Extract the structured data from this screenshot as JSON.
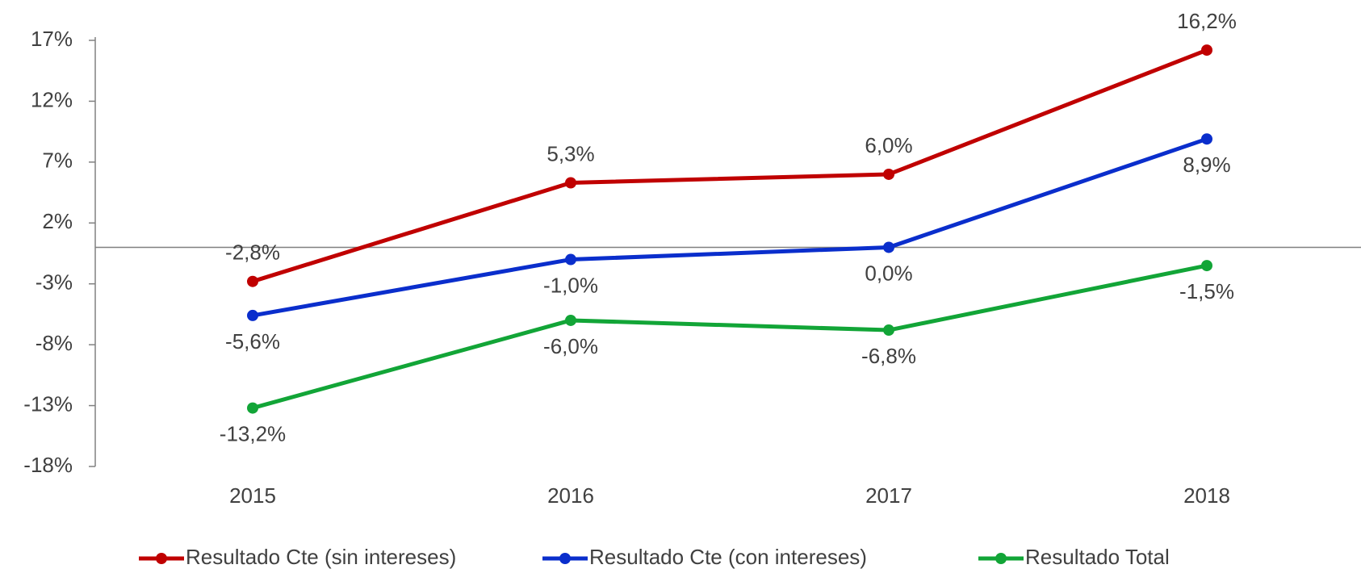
{
  "chart_data": {
    "type": "line",
    "categories": [
      "2015",
      "2016",
      "2017",
      "2018"
    ],
    "series": [
      {
        "name": "Resultado Cte (sin intereses)",
        "color": "#c00000",
        "values": [
          -2.8,
          5.3,
          6.0,
          16.2
        ],
        "value_labels": [
          "-2,8%",
          "5,3%",
          "6,0%",
          "16,2%"
        ]
      },
      {
        "name": "Resultado Cte (con intereses)",
        "color": "#0a2ecc",
        "values": [
          -5.6,
          -1.0,
          0.0,
          8.9
        ],
        "value_labels": [
          "-5,6%",
          "-1,0%",
          "0,0%",
          "8,9%"
        ]
      },
      {
        "name": "Resultado Total",
        "color": "#12a537",
        "values": [
          -13.2,
          -6.0,
          -6.8,
          -1.5
        ],
        "value_labels": [
          "-13,2%",
          "-6,0%",
          "-6,8%",
          "-1,5%"
        ]
      }
    ],
    "ylim": [
      -18,
      17
    ],
    "yticks": [
      {
        "value": 17,
        "label": "17%"
      },
      {
        "value": 12,
        "label": "12%"
      },
      {
        "value": 7,
        "label": "7%"
      },
      {
        "value": 2,
        "label": "2%"
      },
      {
        "value": -3,
        "label": "-3%"
      },
      {
        "value": -8,
        "label": "-8%"
      },
      {
        "value": -13,
        "label": "-13%"
      },
      {
        "value": -18,
        "label": "-18%"
      }
    ],
    "grid": false,
    "legend": "bottom"
  }
}
